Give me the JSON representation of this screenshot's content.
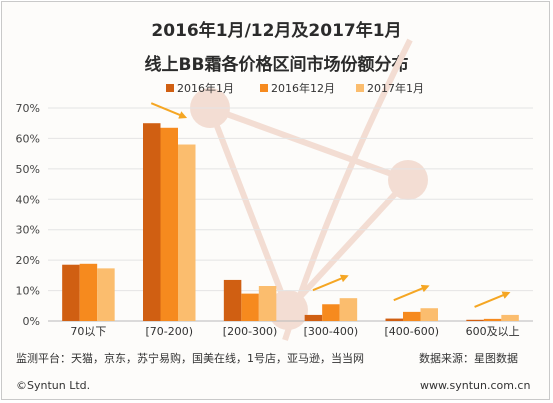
{
  "title_line1": "2016年1月/12月及2017年1月",
  "title_line2": "线上BB霜各价格区间市场份额分布",
  "source_left": "监测平台：天猫，京东，苏宁易购，国美在线，1号店，亚马逊，当当网",
  "source_right": "数据来源：星图数据",
  "copyright": "©Syntun Ltd.",
  "website": "www.syntun.com.cn",
  "colors": {
    "series1": "#d05f12",
    "series2": "#f68a1e",
    "series3": "#fbbd6e",
    "arrow": "#f5a623",
    "grid": "#e4e4e4",
    "watermark": "#f3ddd3"
  },
  "chart_data": {
    "type": "bar",
    "categories": [
      "70以下",
      "[70-200)",
      "[200-300)",
      "[300-400)",
      "[400-600)",
      "600及以上"
    ],
    "series": [
      {
        "name": "2016年1月",
        "values": [
          18.5,
          65,
          13.5,
          2,
          0.8,
          0.4
        ]
      },
      {
        "name": "2016年12月",
        "values": [
          18.8,
          63.5,
          9,
          5.5,
          3,
          0.7
        ]
      },
      {
        "name": "2017年1月",
        "values": [
          17.3,
          58,
          11.5,
          7.5,
          4.2,
          2
        ]
      }
    ],
    "ylim": [
      0,
      70
    ],
    "yticks": [
      "0%",
      "10%",
      "20%",
      "30%",
      "40%",
      "50%",
      "60%",
      "70%"
    ],
    "ytick_values": [
      0,
      10,
      20,
      30,
      40,
      50,
      60,
      70
    ],
    "grid": true,
    "legend_position": "top"
  }
}
